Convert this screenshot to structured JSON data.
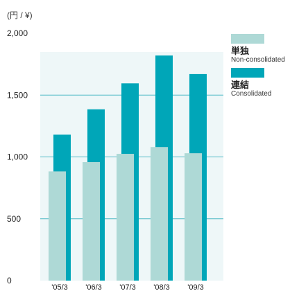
{
  "unit_label": "(円 / ¥)",
  "colors": {
    "non_consolidated": "#aed9d6",
    "consolidated": "#00a6b8",
    "gridline": "#4bb8c4",
    "plot_bg": "#eef7f8"
  },
  "legend": [
    {
      "jp": "単独",
      "en": "Non-consolidated"
    },
    {
      "jp": "連結",
      "en": "Consolidated"
    }
  ],
  "chart_data": {
    "type": "bar",
    "categories": [
      "'05/3",
      "'06/3",
      "'07/3",
      "'08/3",
      "'09/3"
    ],
    "series": [
      {
        "name": "単独 Non-consolidated",
        "values": [
          883,
          958,
          1025,
          1080,
          1030
        ]
      },
      {
        "name": "連結 Consolidated",
        "values": [
          1180,
          1385,
          1595,
          1820,
          1670
        ]
      }
    ],
    "y_ticks": [
      "0",
      "500",
      "1,000",
      "1,500",
      "2,000"
    ],
    "y_tick_values": [
      0,
      500,
      1000,
      1500,
      2000
    ],
    "ylim": [
      0,
      2000
    ],
    "grid": true
  }
}
